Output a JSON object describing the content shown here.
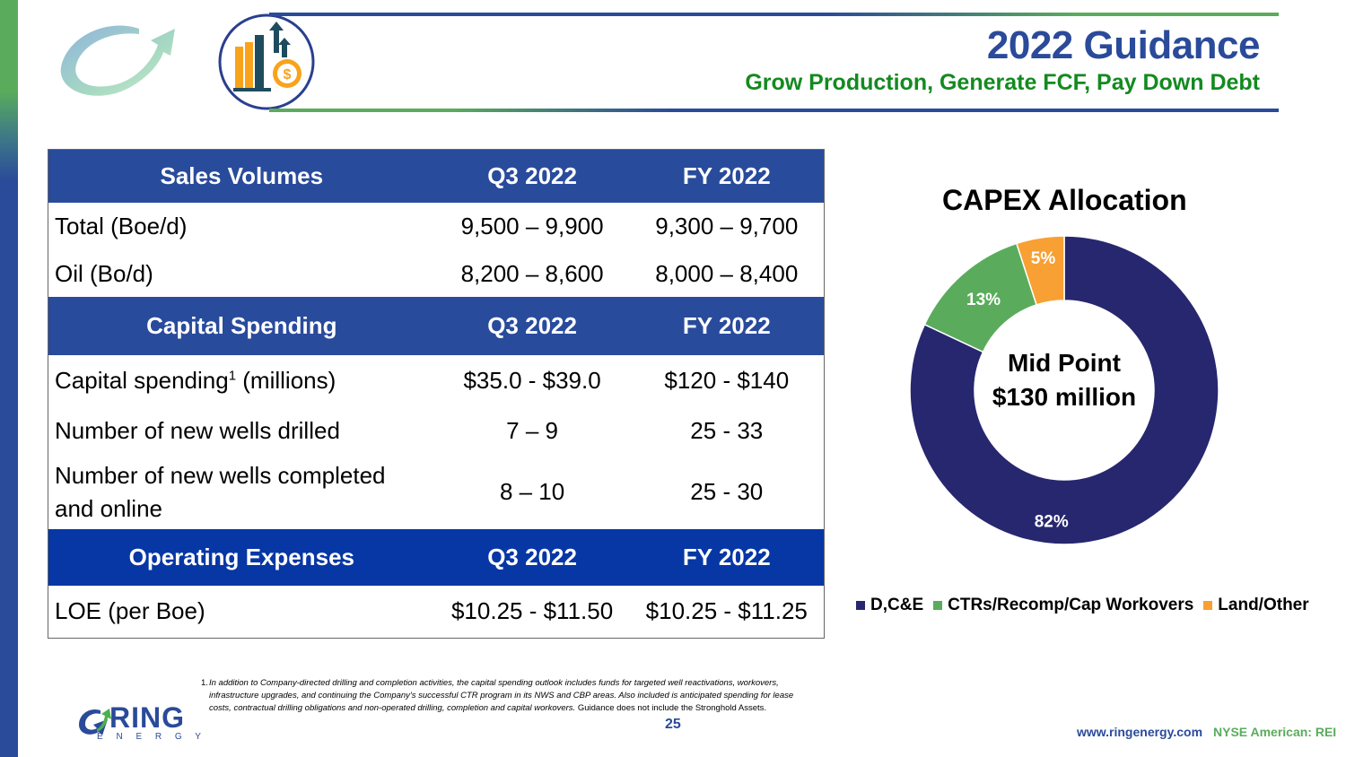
{
  "header": {
    "title": "2022 Guidance",
    "subtitle": "Grow Production, Generate FCF, Pay Down Debt",
    "icons": [
      "ring-arrow-logo-icon",
      "growth-chart-dollar-icon"
    ]
  },
  "table": {
    "sections": [
      {
        "heading": "Sales Volumes",
        "col_q3": "Q3 2022",
        "col_fy": "FY 2022",
        "rows": [
          {
            "label": "Total (Boe/d)",
            "q3": "9,500 – 9,900",
            "fy": "9,300 – 9,700"
          },
          {
            "label": "Oil (Bo/d)",
            "q3": "8,200 – 8,600",
            "fy": "8,000 – 8,400"
          }
        ]
      },
      {
        "heading": "Capital Spending",
        "col_q3": "Q3 2022",
        "col_fy": "FY 2022",
        "rows": [
          {
            "label": "Capital spending",
            "label_sup": "1",
            "label_suffix": " (millions)",
            "q3": "$35.0 - $39.0",
            "fy": "$120 - $140"
          },
          {
            "label": "Number of new wells drilled",
            "q3": "7 – 9",
            "fy": "25 - 33"
          },
          {
            "label": "Number of new wells completed and online",
            "q3": "8 – 10",
            "fy": "25 - 30"
          }
        ]
      },
      {
        "heading": "Operating Expenses",
        "col_q3": "Q3 2022",
        "col_fy": "FY 2022",
        "rows": [
          {
            "label": "LOE (per Boe)",
            "q3": "$10.25 - $11.50",
            "fy": "$10.25 - $11.25"
          }
        ]
      }
    ]
  },
  "chart_data": {
    "type": "pie",
    "variant": "donut",
    "title": "CAPEX Allocation",
    "center_label_line1": "Mid Point",
    "center_label_line2": "$130 million",
    "categories": [
      "D,C&E",
      "CTRs/Recomp/Cap Workovers",
      "Land/Other"
    ],
    "values": [
      82,
      13,
      5
    ],
    "data_labels": [
      "82%",
      "13%",
      "5%"
    ],
    "colors": [
      "#27276f",
      "#5aac5c",
      "#f8a034"
    ],
    "legend_position": "bottom",
    "start_angle": "12 o'clock, clockwise"
  },
  "footnote": {
    "number": "1.",
    "italic_text": "In addition to Company-directed drilling and completion activities, the capital spending outlook includes funds for targeted well reactivations, workovers, infrastructure upgrades, and continuing the Company's successful CTR program in its NWS and CBP areas.  Also included is anticipated spending for lease costs, contractual drilling obligations and non-operated drilling, completion and capital workovers.",
    "regular_text": " Guidance does not include the Stronghold Assets."
  },
  "footer": {
    "page_number": "25",
    "logo_text": "RING",
    "logo_subtext": "E N E R G Y",
    "url": "www.ringenergy.com",
    "ticker": "NYSE American: REI"
  },
  "colors": {
    "brand_blue": "#2a4a9a",
    "brand_green": "#5aac5c",
    "subtitle_green": "#138a1f",
    "table_header": "#294b9c",
    "opex_header": "#0637a4"
  }
}
